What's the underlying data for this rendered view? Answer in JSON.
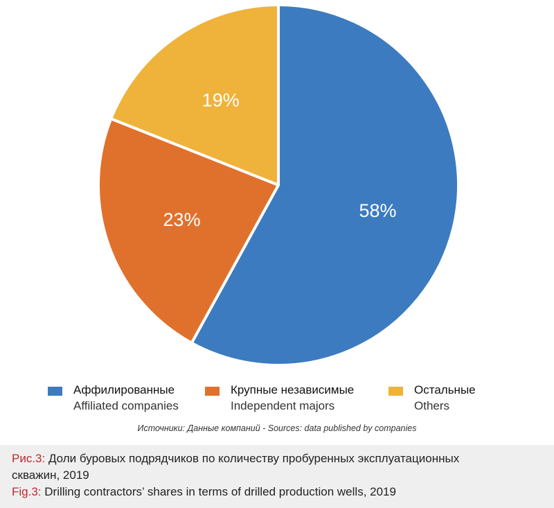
{
  "chart_data": {
    "type": "pie",
    "slices": [
      {
        "label": "58%",
        "value": 58,
        "color": "#3c7bbf"
      },
      {
        "label": "23%",
        "value": 23,
        "color": "#e0712c"
      },
      {
        "label": "19%",
        "value": 19,
        "color": "#efb23a"
      }
    ]
  },
  "legend": [
    {
      "ru": "Аффилированные",
      "en": "Affiliated companies",
      "color": "#3c7bbf"
    },
    {
      "ru": "Крупные независимые",
      "en": "Independent majors",
      "color": "#e0712c"
    },
    {
      "ru": "Остальные",
      "en": "Others",
      "color": "#efb23a"
    }
  ],
  "source": "Источники: Данные компаний - Sources: data published by companies",
  "caption": {
    "ru_label": "Рис.3:",
    "ru_text_line1": " Доли буровых подрядчиков по количеству пробуренных эксплуатационных",
    "ru_text_line2": "скважин, 2019",
    "en_label": "Fig.3:",
    "en_text": " Drilling contractors’ shares in terms of drilled production wells, 2019"
  }
}
